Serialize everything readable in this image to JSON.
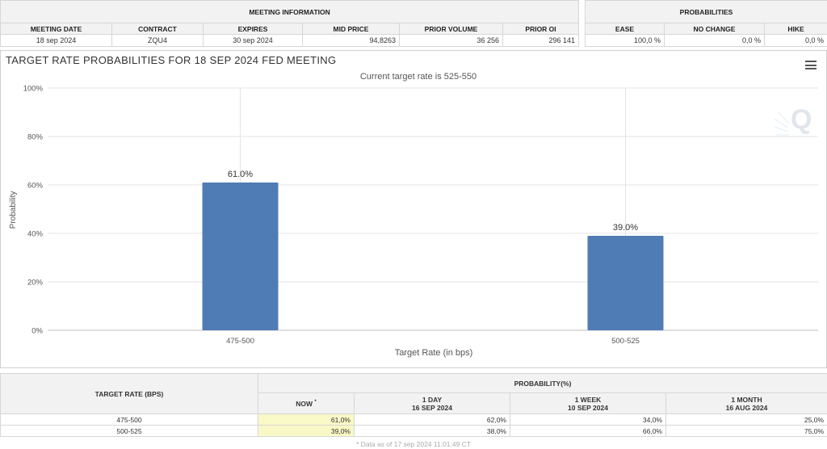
{
  "meeting_info": {
    "section_title": "MEETING INFORMATION",
    "headers": [
      "MEETING DATE",
      "CONTRACT",
      "EXPIRES",
      "MID PRICE",
      "PRIOR VOLUME",
      "PRIOR OI"
    ],
    "values": [
      "18 sep 2024",
      "ZQU4",
      "30 sep 2024",
      "94,8263",
      "36 256",
      "296 141"
    ]
  },
  "probabilities": {
    "section_title": "PROBABILITIES",
    "headers": [
      "EASE",
      "NO CHANGE",
      "HIKE"
    ],
    "values": [
      "100,0 %",
      "0,0 %",
      "0,0 %"
    ]
  },
  "chart_data": {
    "type": "bar",
    "title": "TARGET RATE PROBABILITIES FOR 18 SEP 2024 FED MEETING",
    "subtitle": "Current target rate is 525-550",
    "xlabel": "Target Rate (in bps)",
    "ylabel": "Probability",
    "categories": [
      "475-500",
      "500-525"
    ],
    "values": [
      61.0,
      39.0
    ],
    "data_labels": [
      "61.0%",
      "39.0%"
    ],
    "ylim": [
      0,
      100
    ],
    "yticks": [
      0,
      20,
      40,
      60,
      80,
      100
    ],
    "ytick_labels": [
      "0%",
      "20%",
      "40%",
      "60%",
      "80%",
      "100%"
    ],
    "grid": true,
    "bar_color": "#4f7cb5"
  },
  "bottom_table": {
    "col_header_left": "TARGET RATE (BPS)",
    "col_header_right": "PROBABILITY(%)",
    "sub_headers": [
      {
        "line1": "NOW",
        "marker": "*",
        "line2": ""
      },
      {
        "line1": "1 DAY",
        "line2": "16 SEP 2024"
      },
      {
        "line1": "1 WEEK",
        "line2": "10 SEP 2024"
      },
      {
        "line1": "1 MONTH",
        "line2": "16 AUG 2024"
      }
    ],
    "rows": [
      {
        "rate": "475-500",
        "now": "61,0%",
        "day": "62,0%",
        "week": "34,0%",
        "month": "25,0%"
      },
      {
        "rate": "500-525",
        "now": "39,0%",
        "day": "38,0%",
        "week": "66,0%",
        "month": "75,0%"
      }
    ],
    "footnote": "* Data as of 17 sep 2024 11:01:49 CT"
  },
  "icons": {
    "menu": "hamburger-menu-icon",
    "watermark": "q-watermark-icon"
  }
}
